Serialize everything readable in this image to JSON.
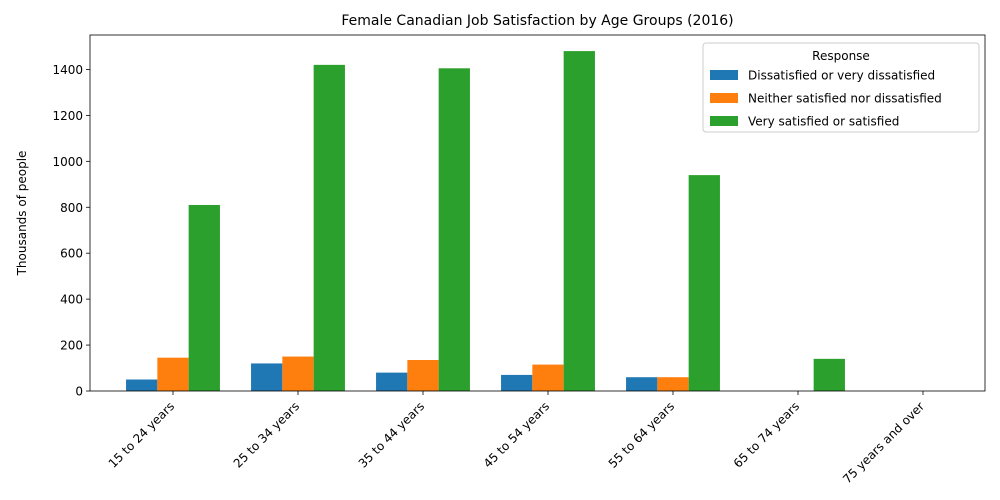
{
  "chart_data": {
    "type": "bar",
    "title": "Female Canadian Job Satisfaction by Age Groups (2016)",
    "xlabel": "",
    "ylabel": "Thousands of people",
    "ylim": [
      0,
      1550
    ],
    "yticks": [
      0,
      200,
      400,
      600,
      800,
      1000,
      1200,
      1400
    ],
    "grid": false,
    "legend": {
      "title": "Response",
      "placement": "top-right"
    },
    "categories": [
      "15 to 24 years",
      "25 to 34 years",
      "35 to 44 years",
      "45 to 54 years",
      "55 to 64 years",
      "65 to 74 years",
      "75 years and over"
    ],
    "series": [
      {
        "name": "Dissatisfied or very dissatisfied",
        "color": "#1f77b4",
        "values": [
          50,
          120,
          80,
          70,
          60,
          0,
          0
        ]
      },
      {
        "name": "Neither satisfied nor dissatisfied",
        "color": "#ff7f0e",
        "values": [
          145,
          150,
          135,
          115,
          60,
          0,
          0
        ]
      },
      {
        "name": "Very satisfied or satisfied",
        "color": "#2ca02c",
        "values": [
          810,
          1420,
          1405,
          1480,
          940,
          140,
          0
        ]
      }
    ]
  }
}
